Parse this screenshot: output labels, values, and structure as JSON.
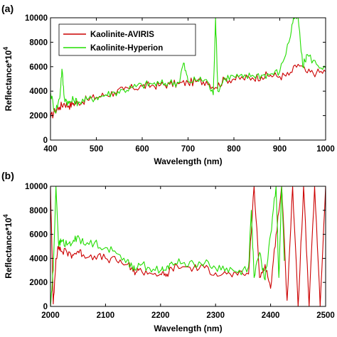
{
  "chart_data": [
    {
      "type": "line",
      "panel_label": "(a)",
      "xlabel": "Wavelength (nm)",
      "ylabel": "Reflectance*10",
      "ylabel_sup": "4",
      "xlim": [
        400,
        1000
      ],
      "ylim": [
        0,
        10000
      ],
      "xticks": [
        400,
        500,
        600,
        700,
        800,
        900,
        1000
      ],
      "yticks": [
        0,
        2000,
        4000,
        6000,
        8000,
        10000
      ],
      "legend_position": "top-left",
      "colors": {
        "Kaolinite-AVIRIS": "#cc0000",
        "Kaolinite-Hyperion": "#22dd00"
      },
      "series": [
        {
          "name": "Kaolinite-AVIRIS",
          "x": [
            400,
            410,
            420,
            430,
            440,
            450,
            460,
            480,
            500,
            520,
            540,
            560,
            580,
            600,
            620,
            640,
            660,
            680,
            700,
            720,
            740,
            760,
            780,
            800,
            820,
            840,
            860,
            880,
            900,
            920,
            940,
            960,
            980,
            1000
          ],
          "y": [
            1800,
            2400,
            2700,
            3000,
            2800,
            3000,
            3100,
            3300,
            3500,
            3700,
            3900,
            4100,
            4250,
            4400,
            4450,
            4500,
            4550,
            4600,
            4700,
            4800,
            4800,
            4300,
            4950,
            5000,
            5050,
            5100,
            5200,
            5300,
            5200,
            5300,
            6200,
            5500,
            5500,
            5600
          ]
        },
        {
          "name": "Kaolinite-Hyperion",
          "x": [
            400,
            410,
            420,
            425,
            430,
            440,
            450,
            460,
            480,
            500,
            520,
            540,
            560,
            580,
            600,
            620,
            640,
            660,
            680,
            690,
            700,
            720,
            740,
            755,
            760,
            765,
            780,
            800,
            820,
            840,
            860,
            880,
            900,
            920,
            930,
            940,
            950,
            960,
            980,
            1000
          ],
          "y": [
            3900,
            2300,
            3400,
            5800,
            3500,
            3000,
            3300,
            3100,
            3300,
            3500,
            3700,
            3900,
            4100,
            4300,
            4500,
            4600,
            4600,
            4700,
            4700,
            6300,
            4800,
            4900,
            4950,
            3700,
            10000,
            4000,
            5100,
            5200,
            5100,
            5300,
            5300,
            5400,
            5600,
            8000,
            10000,
            10000,
            6000,
            7000,
            6200,
            5900
          ]
        }
      ]
    },
    {
      "type": "line",
      "panel_label": "(b)",
      "xlabel": "Wavelength (nm)",
      "ylabel": "Reflectance*10",
      "ylabel_sup": "4",
      "xlim": [
        2000,
        2500
      ],
      "ylim": [
        0,
        10000
      ],
      "xticks": [
        2000,
        2100,
        2200,
        2300,
        2400,
        2500
      ],
      "yticks": [
        0,
        2000,
        4000,
        6000,
        8000,
        10000
      ],
      "colors": {
        "AVIRIS": "#cc0000",
        "Hyperion": "#22dd00"
      },
      "series": [
        {
          "x": [
            2000,
            2005,
            2010,
            2015,
            2020,
            2030,
            2040,
            2050,
            2060,
            2080,
            2100,
            2120,
            2140,
            2150,
            2160,
            2180,
            2200,
            2210,
            2220,
            2240,
            2260,
            2280,
            2300,
            2320,
            2340,
            2360,
            2370,
            2380,
            2390,
            2400,
            2410,
            2420,
            2430,
            2440,
            2450,
            2460,
            2470,
            2480,
            2490,
            2500
          ],
          "y": [
            10000,
            200,
            4000,
            5000,
            4600,
            4500,
            4300,
            4600,
            4300,
            4200,
            4000,
            3800,
            3500,
            2900,
            3000,
            2800,
            2700,
            2500,
            3200,
            3300,
            3200,
            3200,
            2800,
            2700,
            2600,
            2700,
            10000,
            2400,
            3500,
            1500,
            6000,
            10000,
            500,
            10000,
            0,
            10000,
            0,
            10000,
            0,
            10000
          ]
        },
        {
          "x": [
            2000,
            2005,
            2010,
            2015,
            2020,
            2030,
            2040,
            2050,
            2060,
            2080,
            2100,
            2120,
            2140,
            2150,
            2160,
            2180,
            2200,
            2210,
            2220,
            2240,
            2260,
            2280,
            2300,
            2320,
            2340,
            2360,
            2365,
            2370,
            2380,
            2390,
            2400,
            2410,
            2415,
            2420,
            2425
          ],
          "y": [
            0,
            3000,
            10000,
            5000,
            5500,
            5100,
            5300,
            5900,
            5200,
            5300,
            4900,
            4400,
            3900,
            3000,
            3600,
            3200,
            3000,
            3000,
            3700,
            3600,
            3600,
            3600,
            3200,
            3200,
            2800,
            3300,
            8000,
            2400,
            4500,
            2200,
            6000,
            10000,
            2400,
            10000,
            3800
          ]
        }
      ]
    }
  ]
}
